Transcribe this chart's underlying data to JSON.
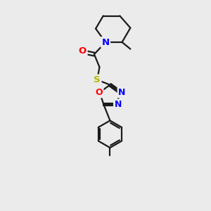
{
  "bg_color": "#ebebeb",
  "bond_color": "#1a1a1a",
  "N_color": "#0000ff",
  "O_color": "#ff0000",
  "S_color": "#b8b800",
  "line_width": 1.6,
  "font_size": 9.5,
  "fig_width": 3.0,
  "fig_height": 3.0,
  "dpi": 100,
  "xlim": [
    0,
    10
  ],
  "ylim": [
    0,
    14
  ]
}
